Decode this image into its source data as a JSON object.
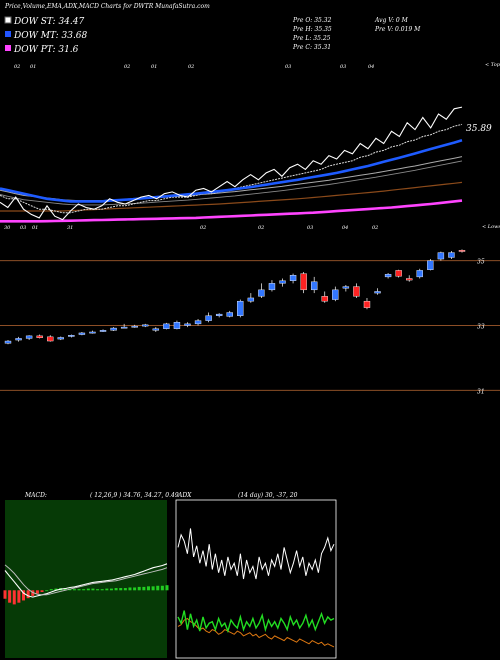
{
  "header": {
    "title": "Price,Volume,EMA,ADX,MACD Charts for DWTR MunafaSutra.com",
    "legend": [
      {
        "label": "DOW ST: 34.47",
        "color": "#ffffff"
      },
      {
        "label": "DOW MT: 33.68",
        "color": "#2255ff"
      },
      {
        "label": "DOW PT: 31.6",
        "color": "#ff44ff"
      }
    ],
    "stats_col1": [
      "Pre  O: 35.32",
      "Pre  H: 35.35",
      "Pre  L: 35.25",
      "Pre  C: 35.31"
    ],
    "stats_col2": [
      "Avg V: 0  M",
      "Pre  V: 0.019 M"
    ]
  },
  "colors": {
    "bg": "#000000",
    "price": "#ffffff",
    "ema_short": "#dddddd",
    "ema_blue": "#1e5bff",
    "ema_grey": "#aaaaaa",
    "ema_brown": "#8b4a1a",
    "ema_pink": "#ff44ff",
    "candle_up": "#3377ff",
    "candle_down": "#ff2222",
    "hline": "#a05a2c",
    "macd_bg": "#063a06",
    "macd_hist": "#22cc22",
    "macd_hist_neg": "#ff3333",
    "adx_di_plus": "#22dd22",
    "adx_di_minus": "#dd7711"
  },
  "chart_data": [
    {
      "type": "line",
      "name": "price-ema",
      "top_date_labels": [
        "02",
        "01",
        "02",
        "01",
        "02",
        "03",
        "03",
        "04"
      ],
      "bottom_date_labels": [
        "30",
        "03",
        "01",
        "31",
        "02",
        "02",
        "03",
        "04",
        "02"
      ],
      "axis_top_label": "< Tops",
      "axis_bottom_label": "< Lows",
      "last_label": "35.89",
      "series": [
        {
          "key": "price",
          "values": [
            30.6,
            30.3,
            30.9,
            30.2,
            29.9,
            29.7,
            30.4,
            29.8,
            29.6,
            30.1,
            30.5,
            30.3,
            30.2,
            30.4,
            30.8,
            30.6,
            30.5,
            30.7,
            30.9,
            31.0,
            30.8,
            31.1,
            31.2,
            31.0,
            30.9,
            31.3,
            31.4,
            31.2,
            31.5,
            31.8,
            31.5,
            31.9,
            32.2,
            31.9,
            32.3,
            32.5,
            32.1,
            32.6,
            32.8,
            32.5,
            33.0,
            32.8,
            33.3,
            33.1,
            33.6,
            33.4,
            34.0,
            33.7,
            34.3,
            34.0,
            34.7,
            34.4,
            35.2,
            34.8,
            35.5,
            34.9,
            35.7,
            35.4,
            36.0,
            36.1
          ]
        },
        {
          "key": "ema_short",
          "values": [
            31.0,
            30.8,
            30.8,
            30.6,
            30.4,
            30.2,
            30.2,
            30.1,
            30.0,
            30.0,
            30.1,
            30.2,
            30.2,
            30.2,
            30.3,
            30.4,
            30.4,
            30.5,
            30.6,
            30.7,
            30.7,
            30.8,
            30.9,
            30.9,
            30.9,
            31.0,
            31.1,
            31.1,
            31.2,
            31.3,
            31.4,
            31.5,
            31.6,
            31.7,
            31.8,
            31.9,
            32.0,
            32.1,
            32.2,
            32.3,
            32.4,
            32.5,
            32.7,
            32.8,
            32.9,
            33.0,
            33.2,
            33.3,
            33.5,
            33.6,
            33.8,
            33.9,
            34.1,
            34.2,
            34.4,
            34.5,
            34.7,
            34.8,
            35.0,
            35.1
          ]
        },
        {
          "key": "ema_blue",
          "values": [
            31.4,
            31.3,
            31.2,
            31.1,
            31.0,
            30.9,
            30.8,
            30.75,
            30.7,
            30.65,
            30.65,
            30.65,
            30.65,
            30.65,
            30.7,
            30.72,
            30.75,
            30.78,
            30.82,
            30.86,
            30.9,
            30.94,
            30.98,
            31.02,
            31.06,
            31.1,
            31.15,
            31.2,
            31.25,
            31.3,
            31.36,
            31.42,
            31.48,
            31.55,
            31.62,
            31.69,
            31.76,
            31.83,
            31.9,
            31.98,
            32.06,
            32.14,
            32.22,
            32.3,
            32.4,
            32.5,
            32.6,
            32.7,
            32.82,
            32.94,
            33.06,
            33.18,
            33.3,
            33.42,
            33.55,
            33.68,
            33.8,
            33.93,
            34.05,
            34.18
          ]
        },
        {
          "key": "ema_grey",
          "values": [
            31.3,
            31.2,
            31.1,
            31.0,
            30.95,
            30.9,
            30.85,
            30.8,
            30.75,
            30.72,
            30.7,
            30.7,
            30.7,
            30.7,
            30.72,
            30.74,
            30.76,
            30.78,
            30.8,
            30.83,
            30.86,
            30.89,
            30.92,
            30.95,
            30.98,
            31.02,
            31.06,
            31.1,
            31.14,
            31.18,
            31.22,
            31.27,
            31.32,
            31.37,
            31.42,
            31.47,
            31.52,
            31.58,
            31.64,
            31.7,
            31.76,
            31.82,
            31.88,
            31.95,
            32.02,
            32.09,
            32.16,
            32.23,
            32.3,
            32.38,
            32.46,
            32.54,
            32.62,
            32.7,
            32.79,
            32.88,
            32.97,
            33.06,
            33.15,
            33.24
          ]
        },
        {
          "key": "ema_brown",
          "values": [
            30.1,
            30.1,
            30.1,
            30.1,
            30.1,
            30.1,
            30.1,
            30.1,
            30.1,
            30.12,
            30.14,
            30.16,
            30.18,
            30.2,
            30.22,
            30.24,
            30.26,
            30.28,
            30.3,
            30.32,
            30.34,
            30.36,
            30.38,
            30.4,
            30.42,
            30.44,
            30.46,
            30.48,
            30.5,
            30.53,
            30.56,
            30.59,
            30.62,
            30.65,
            30.68,
            30.71,
            30.74,
            30.77,
            30.8,
            30.84,
            30.88,
            30.92,
            30.96,
            31.0,
            31.04,
            31.08,
            31.12,
            31.16,
            31.2,
            31.25,
            31.3,
            31.35,
            31.4,
            31.45,
            31.5,
            31.55,
            31.6,
            31.65,
            31.7,
            31.75
          ]
        },
        {
          "key": "ema_pink",
          "values": [
            29.5,
            29.5,
            29.5,
            29.5,
            29.5,
            29.5,
            29.51,
            29.52,
            29.53,
            29.54,
            29.55,
            29.56,
            29.57,
            29.58,
            29.59,
            29.6,
            29.61,
            29.62,
            29.63,
            29.64,
            29.65,
            29.66,
            29.67,
            29.68,
            29.69,
            29.7,
            29.72,
            29.74,
            29.76,
            29.78,
            29.8,
            29.82,
            29.84,
            29.86,
            29.88,
            29.9,
            29.92,
            29.94,
            29.96,
            29.98,
            30.0,
            30.03,
            30.06,
            30.09,
            30.12,
            30.15,
            30.18,
            30.21,
            30.24,
            30.27,
            30.3,
            30.34,
            30.38,
            30.42,
            30.46,
            30.5,
            30.55,
            30.6,
            30.65,
            30.7
          ]
        }
      ],
      "ylim": [
        29.0,
        36.8
      ]
    },
    {
      "type": "candlestick",
      "name": "price-candles",
      "ylim": [
        30.7,
        35.7
      ],
      "y_labels": [
        {
          "value": 35,
          "label": "35"
        },
        {
          "value": 33,
          "label": "33"
        },
        {
          "value": 31,
          "label": "31"
        }
      ],
      "h_lines": [
        35.0,
        33.0,
        31.0
      ],
      "candles": [
        {
          "o": 32.45,
          "h": 32.55,
          "l": 32.42,
          "c": 32.52
        },
        {
          "o": 32.55,
          "h": 32.65,
          "l": 32.5,
          "c": 32.6
        },
        {
          "o": 32.6,
          "h": 32.7,
          "l": 32.55,
          "c": 32.68
        },
        {
          "o": 32.68,
          "h": 32.72,
          "l": 32.6,
          "c": 32.62
        },
        {
          "o": 32.65,
          "h": 32.7,
          "l": 32.5,
          "c": 32.52
        },
        {
          "o": 32.58,
          "h": 32.66,
          "l": 32.55,
          "c": 32.63
        },
        {
          "o": 32.66,
          "h": 32.72,
          "l": 32.63,
          "c": 32.7
        },
        {
          "o": 32.72,
          "h": 32.8,
          "l": 32.7,
          "c": 32.77
        },
        {
          "o": 32.78,
          "h": 32.84,
          "l": 32.75,
          "c": 32.8
        },
        {
          "o": 32.82,
          "h": 32.88,
          "l": 32.8,
          "c": 32.85
        },
        {
          "o": 32.85,
          "h": 32.95,
          "l": 32.83,
          "c": 32.92
        },
        {
          "o": 32.95,
          "h": 33.05,
          "l": 32.93,
          "c": 32.95
        },
        {
          "o": 32.97,
          "h": 33.02,
          "l": 32.93,
          "c": 32.98
        },
        {
          "o": 32.98,
          "h": 33.05,
          "l": 32.95,
          "c": 33.02
        },
        {
          "o": 32.85,
          "h": 32.95,
          "l": 32.8,
          "c": 32.9
        },
        {
          "o": 32.9,
          "h": 33.08,
          "l": 32.88,
          "c": 33.05
        },
        {
          "o": 32.9,
          "h": 33.15,
          "l": 32.88,
          "c": 33.1
        },
        {
          "o": 33.0,
          "h": 33.1,
          "l": 32.95,
          "c": 33.05
        },
        {
          "o": 33.05,
          "h": 33.2,
          "l": 33.0,
          "c": 33.15
        },
        {
          "o": 33.15,
          "h": 33.4,
          "l": 33.1,
          "c": 33.3
        },
        {
          "o": 33.3,
          "h": 33.38,
          "l": 33.25,
          "c": 33.35
        },
        {
          "o": 33.28,
          "h": 33.45,
          "l": 33.25,
          "c": 33.4
        },
        {
          "o": 33.3,
          "h": 33.8,
          "l": 33.25,
          "c": 33.75
        },
        {
          "o": 33.75,
          "h": 34.0,
          "l": 33.7,
          "c": 33.85
        },
        {
          "o": 33.9,
          "h": 34.3,
          "l": 33.85,
          "c": 34.1
        },
        {
          "o": 34.1,
          "h": 34.4,
          "l": 34.05,
          "c": 34.3
        },
        {
          "o": 34.3,
          "h": 34.45,
          "l": 34.2,
          "c": 34.38
        },
        {
          "o": 34.38,
          "h": 34.6,
          "l": 34.3,
          "c": 34.55
        },
        {
          "o": 34.6,
          "h": 34.65,
          "l": 34.0,
          "c": 34.1
        },
        {
          "o": 34.1,
          "h": 34.5,
          "l": 34.0,
          "c": 34.35
        },
        {
          "o": 33.9,
          "h": 34.05,
          "l": 33.7,
          "c": 33.75
        },
        {
          "o": 33.8,
          "h": 34.2,
          "l": 33.75,
          "c": 34.1
        },
        {
          "o": 34.15,
          "h": 34.25,
          "l": 34.05,
          "c": 34.2
        },
        {
          "o": 34.2,
          "h": 34.3,
          "l": 33.85,
          "c": 33.9
        },
        {
          "o": 33.75,
          "h": 33.85,
          "l": 33.5,
          "c": 33.55
        },
        {
          "o": 34.0,
          "h": 34.15,
          "l": 33.95,
          "c": 34.05
        },
        {
          "o": 34.5,
          "h": 34.62,
          "l": 34.45,
          "c": 34.58
        },
        {
          "o": 34.7,
          "h": 34.72,
          "l": 34.48,
          "c": 34.52
        },
        {
          "o": 34.45,
          "h": 34.55,
          "l": 34.35,
          "c": 34.4
        },
        {
          "o": 34.5,
          "h": 34.75,
          "l": 34.45,
          "c": 34.7
        },
        {
          "o": 34.72,
          "h": 35.05,
          "l": 34.7,
          "c": 35.0
        },
        {
          "o": 35.05,
          "h": 35.28,
          "l": 35.0,
          "c": 35.25
        },
        {
          "o": 35.1,
          "h": 35.3,
          "l": 35.05,
          "c": 35.25
        },
        {
          "o": 35.32,
          "h": 35.35,
          "l": 35.25,
          "c": 35.31
        }
      ]
    },
    {
      "type": "line",
      "name": "macd",
      "header": "MACD:",
      "params": "( 12,26,9 ) 34.76,  34.27,  0.49",
      "ylim": [
        -1.2,
        1.6
      ],
      "series": [
        {
          "key": "macd_line",
          "values": [
            0.35,
            0.25,
            0.15,
            0.05,
            -0.05,
            -0.1,
            -0.12,
            -0.1,
            -0.08,
            -0.06,
            -0.03,
            0.0,
            0.02,
            0.03,
            0.05,
            0.06,
            0.08,
            0.1,
            0.12,
            0.14,
            0.15,
            0.16,
            0.17,
            0.18,
            0.2,
            0.22,
            0.24,
            0.26,
            0.28,
            0.31,
            0.34,
            0.37,
            0.4,
            0.42,
            0.44,
            0.47
          ]
        },
        {
          "key": "signal_line",
          "values": [
            0.45,
            0.38,
            0.3,
            0.2,
            0.1,
            0.02,
            -0.04,
            -0.07,
            -0.08,
            -0.08,
            -0.06,
            -0.04,
            -0.02,
            0.0,
            0.02,
            0.04,
            0.06,
            0.08,
            0.1,
            0.12,
            0.13,
            0.14,
            0.15,
            0.16,
            0.17,
            0.19,
            0.21,
            0.23,
            0.25,
            0.27,
            0.29,
            0.31,
            0.33,
            0.35,
            0.37,
            0.4
          ]
        },
        {
          "key": "hist",
          "values": [
            -0.15,
            -0.22,
            -0.25,
            -0.22,
            -0.18,
            -0.14,
            -0.1,
            -0.06,
            -0.03,
            0.0,
            0.02,
            0.03,
            0.04,
            0.03,
            0.03,
            0.02,
            0.02,
            0.02,
            0.03,
            0.03,
            0.02,
            0.02,
            0.03,
            0.03,
            0.04,
            0.04,
            0.04,
            0.05,
            0.05,
            0.06,
            0.06,
            0.07,
            0.07,
            0.08,
            0.08,
            0.09
          ]
        }
      ]
    },
    {
      "type": "line",
      "name": "adx",
      "header": "ADX",
      "params": "(14  day) 30,  -37,  20",
      "ylim": [
        0,
        100
      ],
      "series": [
        {
          "key": "adx_line",
          "values": [
            70,
            78,
            74,
            66,
            82,
            64,
            71,
            60,
            68,
            58,
            72,
            56,
            66,
            54,
            62,
            52,
            64,
            56,
            60,
            52,
            66,
            50,
            62,
            54,
            58,
            50,
            64,
            56,
            60,
            52,
            62,
            58,
            66,
            56,
            70,
            62,
            54,
            60,
            68,
            58,
            64,
            52,
            60,
            56,
            62,
            54,
            66,
            70,
            76,
            68,
            72
          ]
        },
        {
          "key": "di_plus",
          "values": [
            26,
            22,
            30,
            18,
            28,
            20,
            24,
            17,
            26,
            19,
            22,
            23,
            18,
            25,
            20,
            22,
            17,
            24,
            21,
            19,
            26,
            18,
            23,
            20,
            25,
            19,
            22,
            27,
            18,
            24,
            20,
            23,
            19,
            25,
            22,
            18,
            26,
            21,
            24,
            19,
            22,
            27,
            20,
            24,
            18,
            23,
            28,
            22,
            26,
            24,
            25
          ]
        },
        {
          "key": "di_minus",
          "values": [
            20,
            21,
            24,
            25,
            23,
            22,
            20,
            18,
            19,
            17,
            16,
            18,
            17,
            15,
            16,
            18,
            17,
            16,
            15,
            17,
            16,
            14,
            15,
            16,
            14,
            15,
            13,
            14,
            15,
            13,
            12,
            14,
            13,
            12,
            11,
            13,
            12,
            11,
            10,
            12,
            11,
            10,
            9,
            11,
            10,
            9,
            10,
            8,
            9,
            8,
            7
          ]
        }
      ]
    }
  ]
}
